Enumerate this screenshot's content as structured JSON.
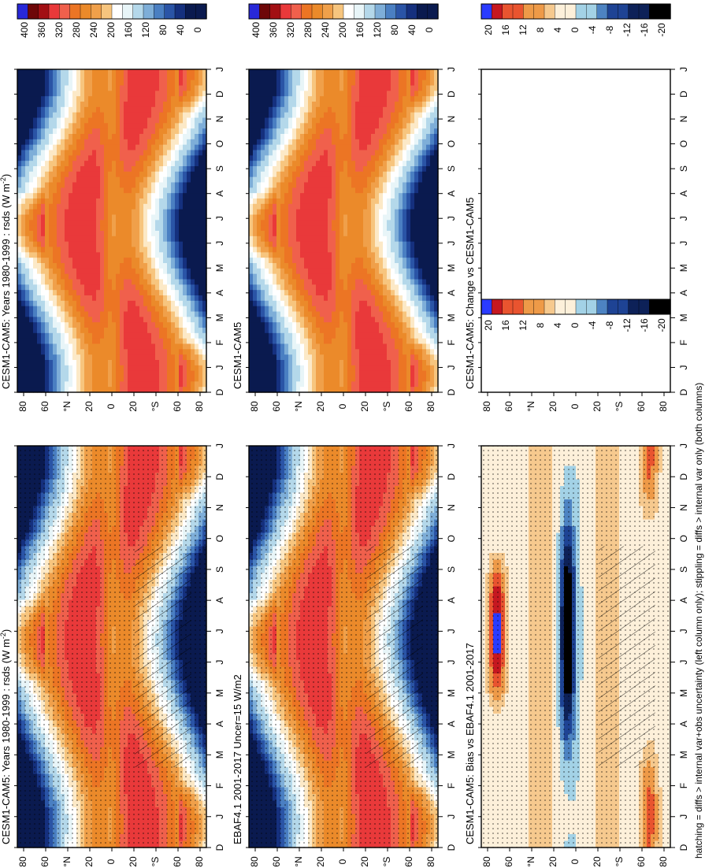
{
  "figure_caption": "hatching = diffs > internal var+obs uncertainty (left column only); stippling = diffs > internal var only (both columns)",
  "chart_data": [
    {
      "type": "heatmap",
      "id": "model_left",
      "title": "CESM1-CAM5: Years 1980-1999 : rsds (W m",
      "title_sup": "-2",
      "title_close": ")",
      "variable": "rsds",
      "x_ticks": [
        "D",
        "J",
        "F",
        "M",
        "A",
        "M",
        "J",
        "J",
        "A",
        "S",
        "O",
        "N",
        "D",
        "J"
      ],
      "y_ticks": [
        "80",
        "60",
        "°N",
        "20",
        "0",
        "20",
        "°S",
        "60",
        "80"
      ],
      "colorbar": {
        "labels": [
          "400",
          "360",
          "320",
          "280",
          "240",
          "200",
          "160",
          "120",
          "80",
          "40",
          "0"
        ],
        "range": [
          0,
          400
        ],
        "palette": "BlWhRe",
        "colors_low_to_high": [
          "#000000",
          "#0b1f5c",
          "#1b3a8f",
          "#2f5fb0",
          "#5b8cc9",
          "#8db9dd",
          "#c4e2ef",
          "#ffffff",
          "#fde3b8",
          "#f6b770",
          "#f0922e",
          "#e97a1d",
          "#f25a4a",
          "#e8262a",
          "#b8121a",
          "#8c0b0b",
          "#1d1dd1",
          "#0022ff"
        ]
      },
      "hatching": true,
      "stippling": true
    },
    {
      "type": "heatmap",
      "id": "obs",
      "title": "EBAF4.1 2001-2017 Uncer=15 W/m2",
      "x_ticks": [
        "D",
        "J",
        "F",
        "M",
        "A",
        "M",
        "J",
        "J",
        "A",
        "S",
        "O",
        "N",
        "D",
        "J"
      ],
      "y_ticks": [
        "80",
        "60",
        "°N",
        "20",
        "0",
        "20",
        "°S",
        "60",
        "80"
      ],
      "colorbar": {
        "labels": [
          "400",
          "360",
          "320",
          "280",
          "240",
          "200",
          "160",
          "120",
          "80",
          "40",
          "0"
        ],
        "range": [
          0,
          400
        ]
      },
      "hatching": true,
      "stippling": true
    },
    {
      "type": "heatmap",
      "id": "bias",
      "title": "CESM1-CAM5: Bias vs EBAF4.1 2001-2017",
      "x_ticks": [
        "D",
        "J",
        "F",
        "M",
        "A",
        "M",
        "J",
        "J",
        "A",
        "S",
        "O",
        "N",
        "D",
        "J"
      ],
      "y_ticks": [
        "80",
        "60",
        "°N",
        "20",
        "0",
        "20",
        "°S",
        "60",
        "80"
      ],
      "colorbar": {
        "labels": [
          "20",
          "16",
          "12",
          "8",
          "4",
          "0",
          "-4",
          "-8",
          "-12",
          "-16",
          "-20"
        ],
        "range": [
          -20,
          20
        ]
      },
      "hatching": true,
      "stippling": true
    },
    {
      "type": "heatmap",
      "id": "model_right",
      "title": "CESM1-CAM5: Years 1980-1999 : rsds (W m",
      "title_sup": "-2",
      "title_close": ")",
      "x_ticks": [
        "D",
        "J",
        "F",
        "M",
        "A",
        "M",
        "J",
        "J",
        "A",
        "S",
        "O",
        "N",
        "D",
        "J"
      ],
      "y_ticks": [
        "80",
        "60",
        "°N",
        "20",
        "0",
        "20",
        "°S",
        "60",
        "80"
      ],
      "colorbar": {
        "labels": [
          "400",
          "360",
          "320",
          "280",
          "240",
          "200",
          "160",
          "120",
          "80",
          "40",
          "0"
        ],
        "range": [
          0,
          400
        ]
      },
      "hatching": false,
      "stippling": false
    },
    {
      "type": "heatmap",
      "id": "model_right2",
      "title": "CESM1-CAM5",
      "x_ticks": [
        "D",
        "J",
        "F",
        "M",
        "A",
        "M",
        "J",
        "J",
        "A",
        "S",
        "O",
        "N",
        "D",
        "J"
      ],
      "y_ticks": [
        "80",
        "60",
        "°N",
        "20",
        "0",
        "20",
        "°S",
        "60",
        "80"
      ],
      "colorbar": {
        "labels": [
          "400",
          "360",
          "320",
          "280",
          "240",
          "200",
          "160",
          "120",
          "80",
          "40",
          "0"
        ],
        "range": [
          0,
          400
        ]
      },
      "hatching": false,
      "stippling": false
    },
    {
      "type": "heatmap",
      "id": "change",
      "title": "CESM1-CAM5: Change vs CESM1-CAM5",
      "x_ticks": [
        "D",
        "J",
        "F",
        "M",
        "A",
        "M",
        "J",
        "J",
        "A",
        "S",
        "O",
        "N",
        "D",
        "J"
      ],
      "y_ticks": [
        "80",
        "60",
        "°N",
        "20",
        "0",
        "20",
        "°S",
        "60",
        "80"
      ],
      "colorbar": {
        "labels": [
          "20",
          "16",
          "12",
          "8",
          "4",
          "0",
          "-4",
          "-8",
          "-12",
          "-16",
          "-20"
        ],
        "range": [
          -20,
          20
        ]
      },
      "empty": true
    }
  ]
}
